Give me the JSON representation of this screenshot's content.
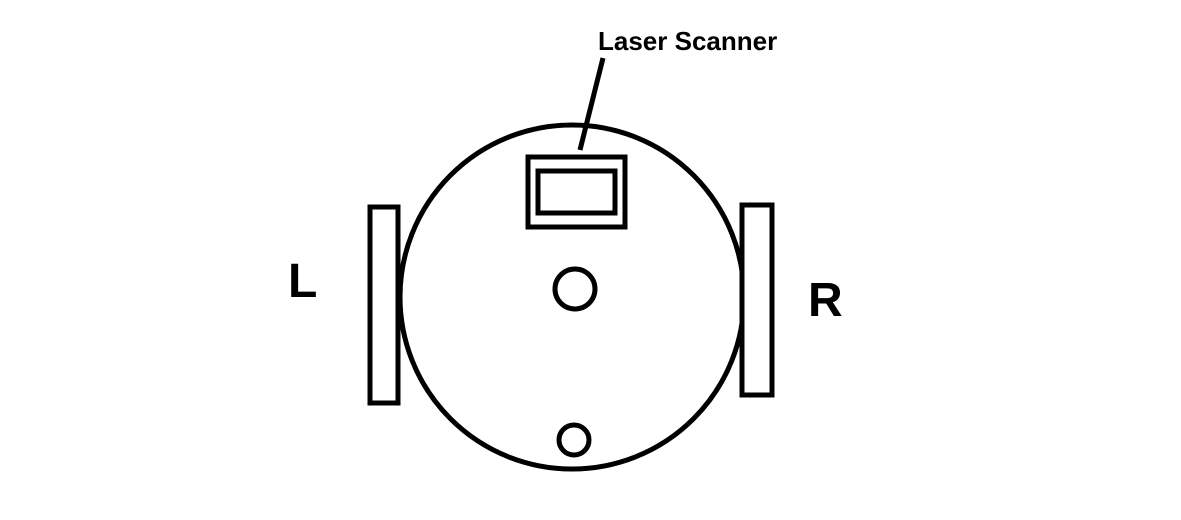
{
  "labels": {
    "scanner": "Laser Scanner",
    "left_wheel": "L",
    "right_wheel": "R"
  },
  "colors": {
    "stroke": "#000000",
    "background": "#ffffff"
  }
}
